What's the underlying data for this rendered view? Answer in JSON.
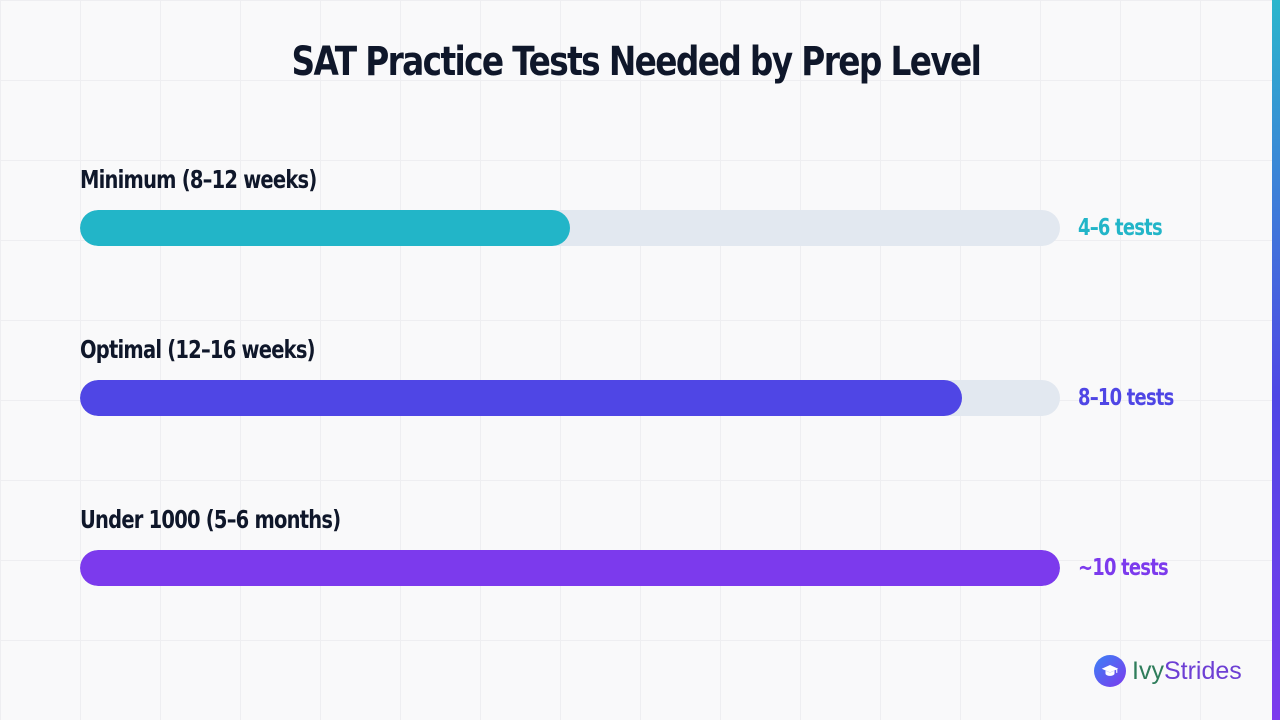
{
  "chart_data": {
    "type": "bar",
    "orientation": "horizontal",
    "title": "SAT Practice Tests Needed by Prep Level",
    "xlim": [
      0,
      10
    ],
    "grid": true,
    "categories": [
      "Minimum (8–12 weeks)",
      "Optimal (12–16 weeks)",
      "Under 1000 (5–6 months)"
    ],
    "values": [
      5,
      9,
      10
    ],
    "value_labels": [
      "4–6 tests",
      "8–10 tests",
      "~10 tests"
    ],
    "colors": [
      "#22b5c8",
      "#4f46e5",
      "#7c3aed"
    ]
  },
  "brand": {
    "name_part1": "Ivy",
    "name_part2": "Strides",
    "icon": "graduation-cap-icon"
  }
}
